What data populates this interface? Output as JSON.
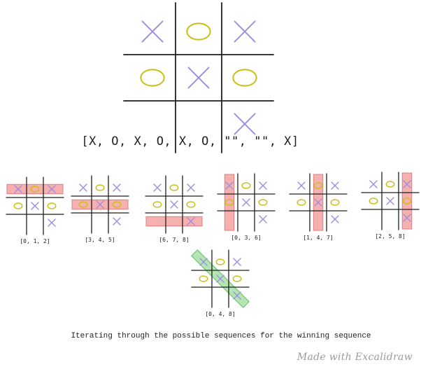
{
  "board": {
    "cells": [
      "X",
      "O",
      "X",
      "O",
      "X",
      "O",
      "",
      "",
      "X"
    ]
  },
  "array_text": "[X, O, X, O, X, O, \"\", \"\", X]",
  "sequences": [
    {
      "label": "[0, 1, 2]",
      "indices": [
        0,
        1,
        2
      ],
      "kind": "row",
      "winning": false
    },
    {
      "label": "[3, 4, 5]",
      "indices": [
        3,
        4,
        5
      ],
      "kind": "row",
      "winning": false
    },
    {
      "label": "[6, 7, 8]",
      "indices": [
        6,
        7,
        8
      ],
      "kind": "row",
      "winning": false
    },
    {
      "label": "[0, 3, 6]",
      "indices": [
        0,
        3,
        6
      ],
      "kind": "col",
      "winning": false
    },
    {
      "label": "[1, 4, 7]",
      "indices": [
        1,
        4,
        7
      ],
      "kind": "col",
      "winning": false
    },
    {
      "label": "[2, 5, 8]",
      "indices": [
        2,
        5,
        8
      ],
      "kind": "col",
      "winning": false
    },
    {
      "label": "[0, 4, 8]",
      "indices": [
        0,
        4,
        8
      ],
      "kind": "diag",
      "winning": true
    }
  ],
  "caption": "Iterating through the possible sequences for the winning sequence",
  "watermark": "Made with Excalidraw",
  "colors": {
    "x_mark": "#a08fe0",
    "o_mark": "#c9bf12",
    "line": "#1e1e1e",
    "highlight_miss": "#f5a3a3",
    "highlight_miss_stroke": "#d46a6a",
    "highlight_win": "#a8e2a8",
    "highlight_win_stroke": "#4caf50"
  }
}
